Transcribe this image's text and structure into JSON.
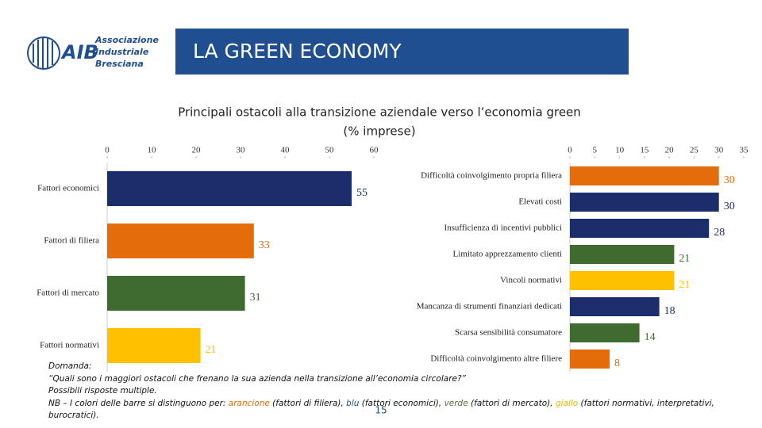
{
  "header": {
    "logo_mark": "AIB",
    "logo_lines": [
      "Associazione",
      "Industriale",
      "Bresciana"
    ],
    "title": "LA GREEN ECONOMY"
  },
  "heading": [
    "Principali ostacoli alla transizione aziendale verso l’economia green",
    "(% imprese)"
  ],
  "chart_data": [
    {
      "type": "bar",
      "orientation": "horizontal",
      "categories": [
        "Fattori economici",
        "Fattori di filiera",
        "Fattori di mercato",
        "Fattori normativi"
      ],
      "values": [
        55,
        33,
        31,
        21
      ],
      "colors": [
        "#1b2d6b",
        "#e46c0a",
        "#3f6b2e",
        "#ffc000"
      ],
      "xlim": [
        0,
        60
      ],
      "xticks": [
        0,
        10,
        20,
        30,
        40,
        50,
        60
      ]
    },
    {
      "type": "bar",
      "orientation": "horizontal",
      "categories": [
        "Difficoltà coinvolgimento propria filiera",
        "Elevati costi",
        "Insufficienza di incentivi pubblici",
        "Limitato apprezzamento clienti",
        "Vincoli normativi",
        "Mancanza di strumenti finanziari dedicati",
        "Scarsa sensibilità consumatore",
        "Difficoltà coinvolgimento altre filiere"
      ],
      "values": [
        30,
        30,
        28,
        21,
        21,
        18,
        14,
        8
      ],
      "colors": [
        "#e46c0a",
        "#1b2d6b",
        "#1b2d6b",
        "#3f6b2e",
        "#ffc000",
        "#1b2d6b",
        "#3f6b2e",
        "#e46c0a"
      ],
      "xlim": [
        0,
        35
      ],
      "xticks": [
        0,
        5,
        10,
        15,
        20,
        25,
        30,
        35
      ]
    }
  ],
  "footer": {
    "lines": [
      "Domanda:",
      "“Quali sono i maggiori ostacoli che frenano la sua azienda nella transizione all’economia circolare?”",
      "Possibili risposte multiple."
    ],
    "note": [
      "NB – I colori delle barre si distinguono per: ",
      "arancione",
      " (fattori di filiera), ",
      "blu",
      " (fattori economici), ",
      "verde",
      " (fattori di mercato), ",
      "giallo",
      " (fattori normativi, interpretativi, burocratici)."
    ],
    "page": "15"
  }
}
